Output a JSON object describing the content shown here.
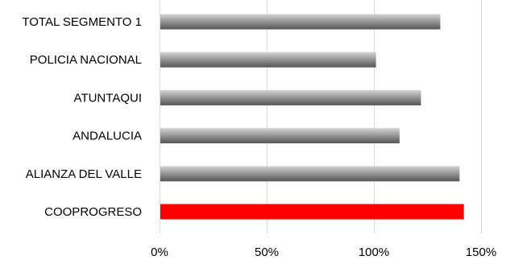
{
  "chart_data": {
    "type": "bar",
    "orientation": "horizontal",
    "categories": [
      "TOTAL SEGMENTO 1",
      "POLICIA NACIONAL",
      "ATUNTAQUI",
      "ANDALUCIA",
      "ALIANZA DEL VALLE",
      "COOPROGRESO"
    ],
    "values": [
      1.31,
      1.01,
      1.22,
      1.12,
      1.4,
      1.42
    ],
    "value_format": "percent",
    "xlim": [
      0,
      1.5
    ],
    "xticks": [
      0,
      0.5,
      1.0,
      1.5
    ],
    "xtick_labels": [
      "0%",
      "50%",
      "100%",
      "150%"
    ],
    "grid": true,
    "legend": "none",
    "colors": {
      "default_bar": "#8c8c8c",
      "highlight_bar": "#ff0000"
    },
    "highlight_category": "COOPROGRESO"
  }
}
